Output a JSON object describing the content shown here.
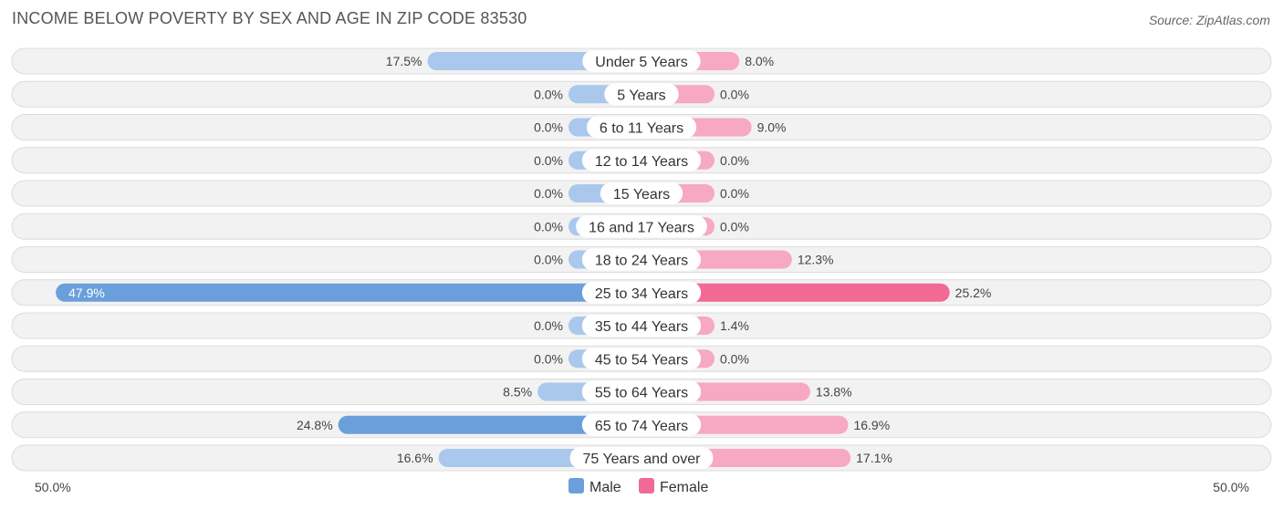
{
  "title": "INCOME BELOW POVERTY BY SEX AND AGE IN ZIP CODE 83530",
  "source": "Source: ZipAtlas.com",
  "colors": {
    "male_strong": "#6a9fdb",
    "male_light": "#a9c8ec",
    "female_strong": "#f06a95",
    "female_light": "#f7a8c2",
    "row_bg": "#f2f2f2",
    "row_border": "#dcdcdc"
  },
  "chart_data": {
    "type": "bar",
    "orientation": "horizontal-diverging",
    "title": "INCOME BELOW POVERTY BY SEX AND AGE IN ZIP CODE 83530",
    "categories": [
      "Under 5 Years",
      "5 Years",
      "6 to 11 Years",
      "12 to 14 Years",
      "15 Years",
      "16 and 17 Years",
      "18 to 24 Years",
      "25 to 34 Years",
      "35 to 44 Years",
      "45 to 54 Years",
      "55 to 64 Years",
      "65 to 74 Years",
      "75 Years and over"
    ],
    "series": [
      {
        "name": "Male",
        "values": [
          17.5,
          0.0,
          0.0,
          0.0,
          0.0,
          0.0,
          0.0,
          47.9,
          0.0,
          0.0,
          8.5,
          24.8,
          16.6
        ],
        "labels": [
          "17.5%",
          "0.0%",
          "0.0%",
          "0.0%",
          "0.0%",
          "0.0%",
          "0.0%",
          "47.9%",
          "0.0%",
          "0.0%",
          "8.5%",
          "24.8%",
          "16.6%"
        ]
      },
      {
        "name": "Female",
        "values": [
          8.0,
          0.0,
          9.0,
          0.0,
          0.0,
          0.0,
          12.3,
          25.2,
          1.4,
          0.0,
          13.8,
          16.9,
          17.1
        ],
        "labels": [
          "8.0%",
          "0.0%",
          "9.0%",
          "0.0%",
          "0.0%",
          "0.0%",
          "12.3%",
          "25.2%",
          "1.4%",
          "0.0%",
          "13.8%",
          "16.9%",
          "17.1%"
        ]
      }
    ],
    "xlim": [
      0,
      50
    ],
    "axis_left_label": "50.0%",
    "axis_right_label": "50.0%",
    "legend": {
      "position": "bottom-center",
      "entries": [
        "Male",
        "Female"
      ]
    }
  }
}
